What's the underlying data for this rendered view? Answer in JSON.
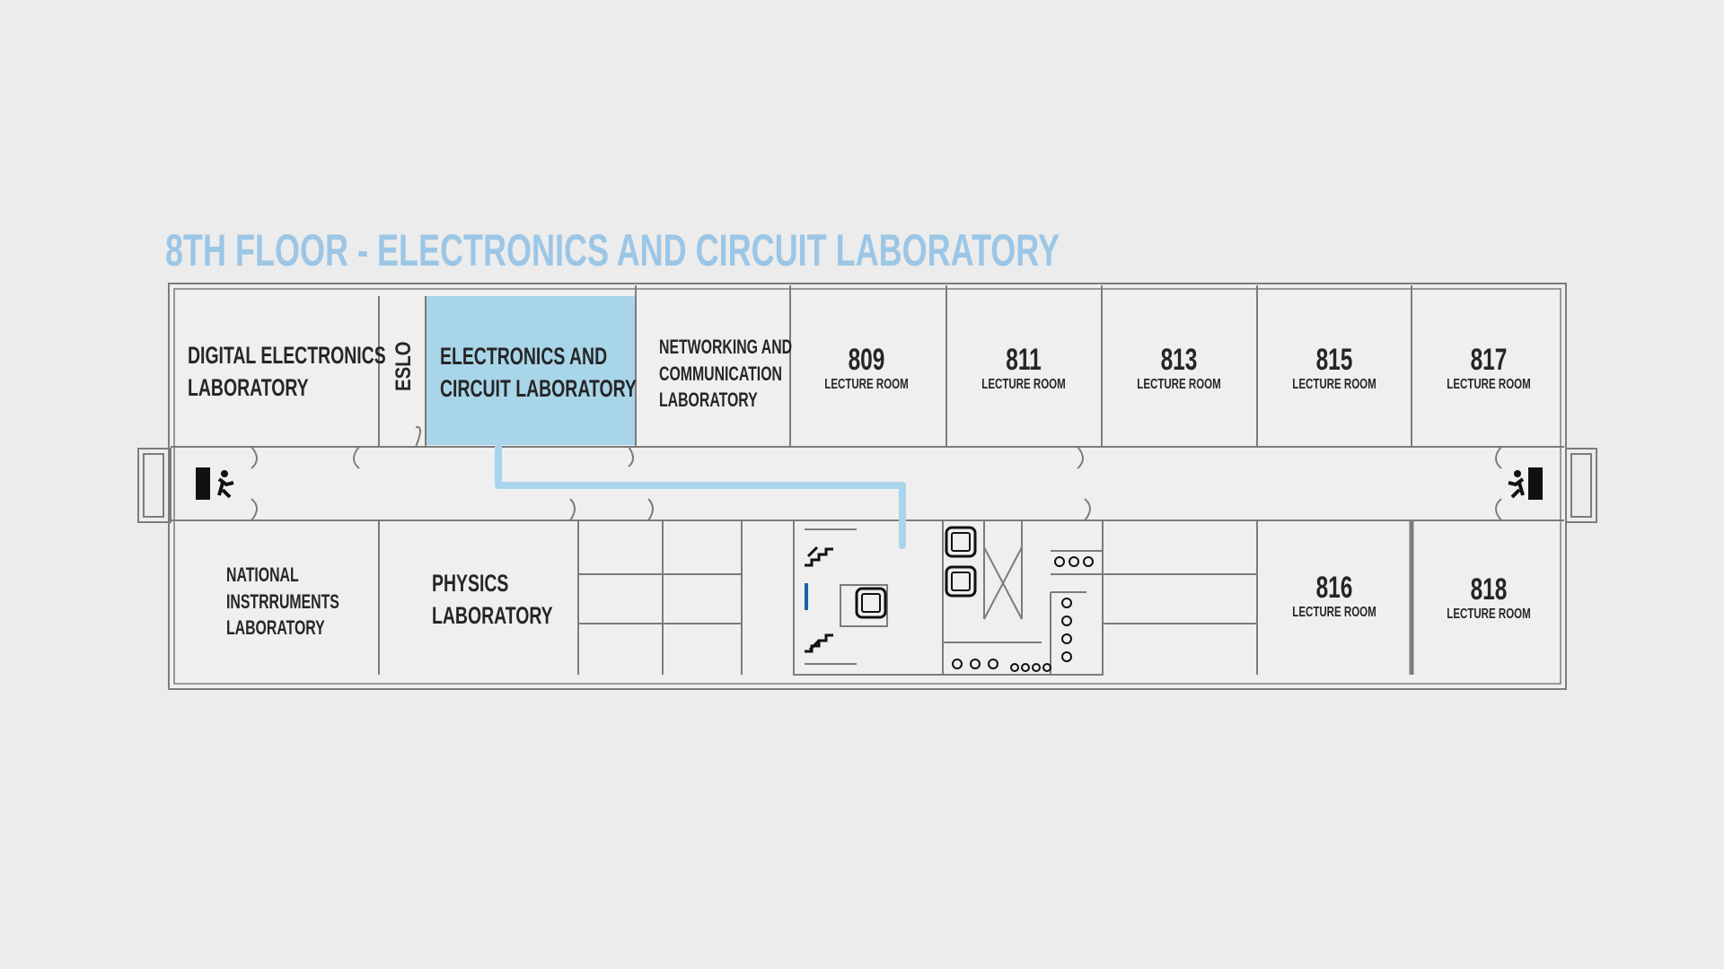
{
  "title": "8TH FLOOR - ELECTRONICS AND CIRCUIT LABORATORY",
  "colors": {
    "background": "#ececec",
    "wall": "#7c7c7c",
    "highlight_room": "#a9d5e9",
    "route": "#a9d5ec",
    "title": "#9cc6e6"
  },
  "rooms": {
    "digital_electronics": [
      "DIGITAL ELECTRONICS",
      "LABORATORY"
    ],
    "eslo": "ESLO",
    "electronics_circuit": [
      "ELECTRONICS AND",
      "CIRCUIT LABORATORY"
    ],
    "networking": [
      "NETWORKING AND",
      "COMMUNICATION",
      "LABORATORY"
    ],
    "national_instruments": [
      "NATIONAL",
      "INSTRRUMENTS",
      "LABORATORY"
    ],
    "physics": [
      "PHYSICS",
      "LABORATORY"
    ]
  },
  "lecture_rooms": [
    {
      "number": "809",
      "label": "LECTURE ROOM"
    },
    {
      "number": "811",
      "label": "LECTURE ROOM"
    },
    {
      "number": "813",
      "label": "LECTURE ROOM"
    },
    {
      "number": "815",
      "label": "LECTURE ROOM"
    },
    {
      "number": "817",
      "label": "LECTURE ROOM"
    },
    {
      "number": "816",
      "label": "LECTURE ROOM"
    },
    {
      "number": "818",
      "label": "LECTURE ROOM"
    }
  ],
  "icons": [
    "emergency-exit-icon",
    "stairs-up-icon",
    "stairs-down-icon",
    "elevator-icon",
    "toilet-icon"
  ]
}
